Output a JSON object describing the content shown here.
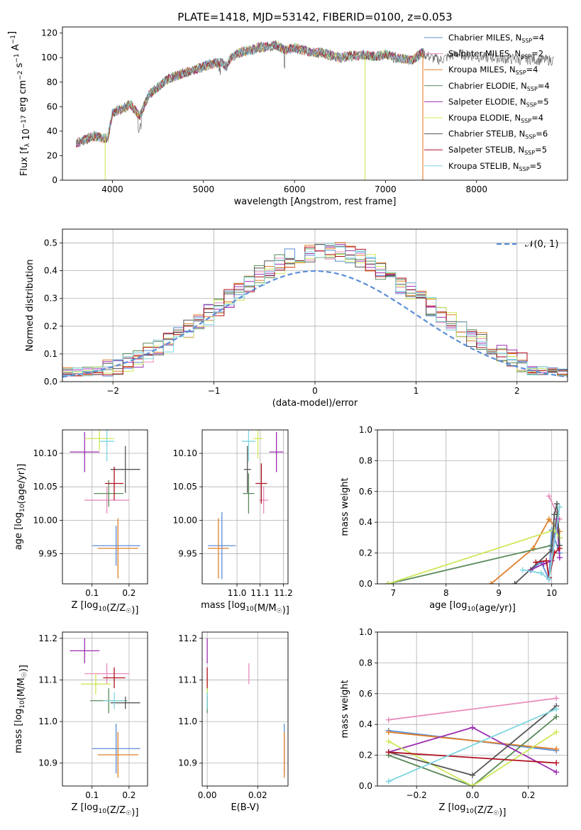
{
  "figure_title": "PLATE=1418, MJD=53142, FIBERID=0100, z=0.053",
  "colors": {
    "chabrier_miles": "#5b8ed6",
    "salpeter_miles": "#e98bbd",
    "kroupa_miles": "#e0802b",
    "chabrier_elodie": "#5a8a5a",
    "salpeter_elodie": "#9b2fb0",
    "kroupa_elodie": "#cde85a",
    "chabrier_stelib": "#555555",
    "salpeter_stelib": "#b01020",
    "kroupa_stelib": "#7fd6e0",
    "normal_curve": "#5b8ed6",
    "grid": "#b0b0b0"
  },
  "chart_data": [
    {
      "id": "spectrum",
      "type": "line",
      "title": "PLATE=1418, MJD=53142, FIBERID=0100, z=0.053",
      "xlabel": "wavelength [Angstrom, rest frame]",
      "ylabel": "Flux [f_λ 10^-17 erg cm^-2 s^-1 A^-1]",
      "xlim": [
        3450,
        9000
      ],
      "ylim": [
        0,
        125
      ],
      "xticks": [
        4000,
        5000,
        6000,
        7000,
        8000
      ],
      "yticks": [
        0,
        20,
        40,
        60,
        80,
        100,
        120
      ],
      "grid": false,
      "legend_position": "top-right",
      "legend": [
        {
          "label": "Chabrier MILES, N",
          "sub": "SSP",
          "suffix": "=4"
        },
        {
          "label": "Salpeter MILES, N",
          "sub": "SSP",
          "suffix": "=2"
        },
        {
          "label": "Kroupa MILES, N",
          "sub": "SSP",
          "suffix": "=4"
        },
        {
          "label": "Chabrier ELODIE, N",
          "sub": "SSP",
          "suffix": "=4"
        },
        {
          "label": "Salpeter ELODIE, N",
          "sub": "SSP",
          "suffix": "=5"
        },
        {
          "label": "Kroupa ELODIE, N",
          "sub": "SSP",
          "suffix": "=4"
        },
        {
          "label": "Chabrier STELIB, N",
          "sub": "SSP",
          "suffix": "=6"
        },
        {
          "label": "Salpeter STELIB, N",
          "sub": "SSP",
          "suffix": "=5"
        },
        {
          "label": "Kroupa STELIB, N",
          "sub": "SSP",
          "suffix": "=5"
        }
      ],
      "continuum": [
        [
          3600,
          30
        ],
        [
          3700,
          33
        ],
        [
          3800,
          36
        ],
        [
          3900,
          34
        ],
        [
          3950,
          35
        ],
        [
          4000,
          55
        ],
        [
          4100,
          58
        ],
        [
          4200,
          62
        ],
        [
          4300,
          52
        ],
        [
          4400,
          70
        ],
        [
          4500,
          76
        ],
        [
          4600,
          82
        ],
        [
          4700,
          85
        ],
        [
          4800,
          88
        ],
        [
          4900,
          90
        ],
        [
          5000,
          93
        ],
        [
          5100,
          95
        ],
        [
          5200,
          96
        ],
        [
          5250,
          92
        ],
        [
          5300,
          100
        ],
        [
          5400,
          104
        ],
        [
          5500,
          106
        ],
        [
          5600,
          108
        ],
        [
          5700,
          109
        ],
        [
          5800,
          110
        ],
        [
          5900,
          106
        ],
        [
          6000,
          108
        ],
        [
          6100,
          106
        ],
        [
          6200,
          104
        ],
        [
          6300,
          104
        ],
        [
          6400,
          102
        ],
        [
          6500,
          100
        ],
        [
          6600,
          101
        ],
        [
          6700,
          102
        ],
        [
          6800,
          102
        ],
        [
          6900,
          101
        ],
        [
          7000,
          103
        ],
        [
          7100,
          100
        ],
        [
          7200,
          99
        ],
        [
          7300,
          98
        ],
        [
          7400,
          104
        ],
        [
          7500,
          100
        ],
        [
          7600,
          98
        ],
        [
          7700,
          101
        ],
        [
          7800,
          103
        ],
        [
          7900,
          102
        ],
        [
          8000,
          101
        ],
        [
          8100,
          100
        ],
        [
          8200,
          100
        ],
        [
          8300,
          99
        ],
        [
          8400,
          99
        ],
        [
          8500,
          98
        ],
        [
          8600,
          99
        ],
        [
          8700,
          98
        ],
        [
          8800,
          98
        ],
        [
          8900,
          98
        ]
      ],
      "spectrum_end": [
        7400,
        8850
      ],
      "model_range": [
        3600,
        7420
      ],
      "drop_lines": [
        {
          "x": 3920,
          "model": "kroupa_elodie"
        },
        {
          "x": 6775,
          "model": "kroupa_elodie"
        },
        {
          "x": 7410,
          "model": "kroupa_miles"
        }
      ]
    },
    {
      "id": "residual_histogram",
      "type": "step",
      "xlabel": "(data-model)/error",
      "ylabel": "Normed distribution",
      "xlim": [
        -2.5,
        2.5
      ],
      "ylim": [
        0,
        0.55
      ],
      "xticks": [
        -2,
        -1,
        0,
        1,
        2
      ],
      "yticks": [
        0.0,
        0.1,
        0.2,
        0.3,
        0.4,
        0.5
      ],
      "grid": true,
      "legend_position": "top-right",
      "legend": [
        {
          "label": "𝒩(0, 1)"
        }
      ],
      "bin_width": 0.1,
      "normal_curve": {
        "mean": 0,
        "sigma": 1
      }
    },
    {
      "id": "age_vs_Z",
      "type": "errorbar",
      "xlabel": "Z [log10(Z/Z☉)]",
      "ylabel": "age [log10(age/yr)]",
      "xlim": [
        0.02,
        0.25
      ],
      "ylim": [
        9.905,
        10.135
      ],
      "xticks": [
        0.1,
        0.2
      ],
      "yticks": [
        9.95,
        10.0,
        10.05,
        10.1
      ],
      "grid": true,
      "points": [
        {
          "model": "chabrier_miles",
          "x": 0.165,
          "y": 9.962,
          "xerr": 0.065,
          "yerr": 0.03
        },
        {
          "model": "salpeter_miles",
          "x": 0.14,
          "y": 10.03,
          "xerr": 0.06,
          "yerr": 0.02
        },
        {
          "model": "kroupa_miles",
          "x": 0.17,
          "y": 9.958,
          "xerr": 0.055,
          "yerr": 0.045
        },
        {
          "model": "chabrier_elodie",
          "x": 0.145,
          "y": 10.04,
          "xerr": 0.04,
          "yerr": 0.02
        },
        {
          "model": "salpeter_elodie",
          "x": 0.08,
          "y": 10.102,
          "xerr": 0.04,
          "yerr": 0.03
        },
        {
          "model": "kroupa_elodie",
          "x": 0.12,
          "y": 10.122,
          "xerr": 0.04,
          "yerr": 0.018
        },
        {
          "model": "chabrier_stelib",
          "x": 0.19,
          "y": 10.076,
          "xerr": 0.04,
          "yerr": 0.035
        },
        {
          "model": "salpeter_stelib",
          "x": 0.16,
          "y": 10.055,
          "xerr": 0.025,
          "yerr": 0.025
        },
        {
          "model": "kroupa_stelib",
          "x": 0.14,
          "y": 10.118,
          "xerr": 0.02,
          "yerr": 0.03
        }
      ]
    },
    {
      "id": "age_vs_mass",
      "type": "errorbar",
      "xlabel": "mass [log10(M/M☉)]",
      "ylabel": "",
      "xlim": [
        10.85,
        11.22
      ],
      "ylim": [
        9.905,
        10.135
      ],
      "xticks": [
        11.0,
        11.1,
        11.2
      ],
      "yticks": [
        9.95,
        10.0,
        10.05,
        10.1
      ],
      "grid": true,
      "points": [
        {
          "model": "chabrier_miles",
          "x": 10.935,
          "y": 9.962,
          "xerr": 0.06,
          "yerr": 0.05
        },
        {
          "model": "salpeter_miles",
          "x": 11.115,
          "y": 10.03,
          "xerr": 0.02,
          "yerr": 0.02
        },
        {
          "model": "kroupa_miles",
          "x": 10.92,
          "y": 9.958,
          "xerr": 0.045,
          "yerr": 0.045
        },
        {
          "model": "chabrier_elodie",
          "x": 11.05,
          "y": 10.04,
          "xerr": 0.025,
          "yerr": 0.03
        },
        {
          "model": "salpeter_elodie",
          "x": 11.17,
          "y": 10.102,
          "xerr": 0.03,
          "yerr": 0.03
        },
        {
          "model": "kroupa_elodie",
          "x": 11.09,
          "y": 10.122,
          "xerr": 0.02,
          "yerr": 0.03
        },
        {
          "model": "chabrier_stelib",
          "x": 11.045,
          "y": 10.076,
          "xerr": 0.015,
          "yerr": 0.035
        },
        {
          "model": "salpeter_stelib",
          "x": 11.105,
          "y": 10.055,
          "xerr": 0.025,
          "yerr": 0.03
        },
        {
          "model": "kroupa_stelib",
          "x": 11.05,
          "y": 10.118,
          "xerr": 0.03,
          "yerr": 0.03
        }
      ]
    },
    {
      "id": "mass_weight_vs_age",
      "type": "line",
      "xlabel": "age [log10(age/yr)]",
      "ylabel": "mass weight",
      "xlim": [
        6.7,
        10.3
      ],
      "ylim": [
        0,
        1.0
      ],
      "xticks": [
        7,
        8,
        9,
        10
      ],
      "yticks": [
        0.0,
        0.2,
        0.4,
        0.6,
        0.8,
        1.0
      ],
      "grid": true,
      "series": [
        {
          "model": "chabrier_miles",
          "points": [
            [
              9.6,
              0.09
            ],
            [
              9.8,
              0.14
            ],
            [
              9.95,
              0.03
            ],
            [
              10.0,
              0.35
            ],
            [
              10.15,
              0.2
            ]
          ]
        },
        {
          "model": "salpeter_miles",
          "points": [
            [
              9.95,
              0.57
            ],
            [
              10.15,
              0.42
            ]
          ]
        },
        {
          "model": "kroupa_miles",
          "points": [
            [
              8.85,
              0.0
            ],
            [
              9.65,
              0.23
            ],
            [
              9.95,
              0.42
            ],
            [
              10.15,
              0.34
            ]
          ]
        },
        {
          "model": "chabrier_elodie",
          "points": [
            [
              6.9,
              0.0
            ],
            [
              10.0,
              0.25
            ],
            [
              10.1,
              0.45
            ],
            [
              10.15,
              0.3
            ]
          ]
        },
        {
          "model": "salpeter_elodie",
          "points": [
            [
              9.6,
              0.09
            ],
            [
              9.85,
              0.13
            ],
            [
              10.0,
              0.15
            ],
            [
              10.1,
              0.42
            ],
            [
              10.15,
              0.17
            ]
          ]
        },
        {
          "model": "kroupa_elodie",
          "points": [
            [
              6.9,
              0.0
            ],
            [
              10.05,
              0.35
            ],
            [
              10.15,
              0.3
            ]
          ]
        },
        {
          "model": "chabrier_stelib",
          "points": [
            [
              9.3,
              0.0
            ],
            [
              10.0,
              0.22
            ],
            [
              10.05,
              0.45
            ],
            [
              10.1,
              0.52
            ],
            [
              10.15,
              0.25
            ]
          ]
        },
        {
          "model": "salpeter_stelib",
          "points": [
            [
              9.7,
              0.14
            ],
            [
              9.9,
              0.15
            ],
            [
              9.95,
              0.04
            ],
            [
              10.05,
              0.2
            ],
            [
              10.15,
              0.23
            ]
          ]
        },
        {
          "model": "kroupa_stelib",
          "points": [
            [
              9.45,
              0.09
            ],
            [
              9.8,
              0.07
            ],
            [
              9.95,
              0.03
            ],
            [
              10.15,
              0.5
            ]
          ]
        }
      ]
    },
    {
      "id": "mass_vs_Z",
      "type": "errorbar",
      "xlabel": "Z [log10(Z/Z☉)]",
      "ylabel": "mass [log10(M/M☉)]",
      "xlim": [
        0.02,
        0.25
      ],
      "ylim": [
        10.845,
        11.215
      ],
      "xticks": [
        0.1,
        0.2
      ],
      "yticks": [
        10.9,
        11.0,
        11.1,
        11.2
      ],
      "grid": true,
      "points": [
        {
          "model": "chabrier_miles",
          "x": 0.165,
          "y": 10.935,
          "xerr": 0.065,
          "yerr": 0.06
        },
        {
          "model": "salpeter_miles",
          "x": 0.14,
          "y": 11.115,
          "xerr": 0.06,
          "yerr": 0.025
        },
        {
          "model": "kroupa_miles",
          "x": 0.17,
          "y": 10.92,
          "xerr": 0.055,
          "yerr": 0.055
        },
        {
          "model": "chabrier_elodie",
          "x": 0.145,
          "y": 11.05,
          "xerr": 0.05,
          "yerr": 0.03
        },
        {
          "model": "salpeter_elodie",
          "x": 0.08,
          "y": 11.17,
          "xerr": 0.04,
          "yerr": 0.03
        },
        {
          "model": "kroupa_elodie",
          "x": 0.11,
          "y": 11.09,
          "xerr": 0.04,
          "yerr": 0.025
        },
        {
          "model": "chabrier_stelib",
          "x": 0.19,
          "y": 11.045,
          "xerr": 0.04,
          "yerr": 0.015
        },
        {
          "model": "salpeter_stelib",
          "x": 0.16,
          "y": 11.105,
          "xerr": 0.03,
          "yerr": 0.025
        },
        {
          "model": "kroupa_stelib",
          "x": 0.16,
          "y": 11.05,
          "xerr": 0.03,
          "yerr": 0.02
        }
      ]
    },
    {
      "id": "mass_vs_ebv",
      "type": "errorbar",
      "xlabel": "E(B-V)",
      "ylabel": "",
      "xlim": [
        -0.002,
        0.032
      ],
      "ylim": [
        10.845,
        11.215
      ],
      "xticks": [
        0.0,
        0.02
      ],
      "yticks": [
        10.9,
        11.0,
        11.1,
        11.2
      ],
      "grid": true,
      "points": [
        {
          "model": "chabrier_miles",
          "x": 0.0305,
          "y": 10.935,
          "xerr": 0,
          "yerr": 0.06
        },
        {
          "model": "salpeter_miles",
          "x": 0.0165,
          "y": 11.115,
          "xerr": 0,
          "yerr": 0.025
        },
        {
          "model": "kroupa_miles",
          "x": 0.0305,
          "y": 10.92,
          "xerr": 0,
          "yerr": 0.055
        },
        {
          "model": "chabrier_elodie",
          "x": 0.0,
          "y": 11.05,
          "xerr": 0,
          "yerr": 0.03
        },
        {
          "model": "salpeter_elodie",
          "x": 0.0,
          "y": 11.17,
          "xerr": 0,
          "yerr": 0.03
        },
        {
          "model": "kroupa_elodie",
          "x": 0.0,
          "y": 11.09,
          "xerr": 0,
          "yerr": 0.025
        },
        {
          "model": "chabrier_stelib",
          "x": 0.0,
          "y": 11.045,
          "xerr": 0,
          "yerr": 0.015
        },
        {
          "model": "salpeter_stelib",
          "x": 0.0,
          "y": 11.105,
          "xerr": 0,
          "yerr": 0.025
        },
        {
          "model": "kroupa_stelib",
          "x": 0.0,
          "y": 11.05,
          "xerr": 0,
          "yerr": 0.02
        }
      ]
    },
    {
      "id": "mass_weight_vs_Z",
      "type": "line",
      "xlabel": "Z [log10(Z/Z☉)]",
      "ylabel": "mass weight",
      "xlim": [
        -0.34,
        0.34
      ],
      "ylim": [
        0,
        1.0
      ],
      "xticks": [
        -0.2,
        0.0,
        0.2
      ],
      "yticks": [
        0.0,
        0.2,
        0.4,
        0.6,
        0.8,
        1.0
      ],
      "grid": true,
      "series": [
        {
          "model": "chabrier_miles",
          "points": [
            [
              -0.3,
              0.36
            ],
            [
              0.3,
              0.23
            ]
          ]
        },
        {
          "model": "salpeter_miles",
          "points": [
            [
              -0.3,
              0.43
            ],
            [
              0.3,
              0.57
            ]
          ]
        },
        {
          "model": "kroupa_miles",
          "points": [
            [
              -0.3,
              0.35
            ],
            [
              0.3,
              0.24
            ]
          ]
        },
        {
          "model": "chabrier_elodie",
          "points": [
            [
              -0.3,
              0.2
            ],
            [
              0.0,
              0.0
            ],
            [
              0.3,
              0.45
            ]
          ]
        },
        {
          "model": "salpeter_elodie",
          "points": [
            [
              -0.3,
              0.22
            ],
            [
              0.0,
              0.38
            ],
            [
              0.3,
              0.09
            ]
          ]
        },
        {
          "model": "kroupa_elodie",
          "points": [
            [
              -0.3,
              0.29
            ],
            [
              0.0,
              0.0
            ],
            [
              0.3,
              0.35
            ]
          ]
        },
        {
          "model": "chabrier_stelib",
          "points": [
            [
              -0.3,
              0.22
            ],
            [
              0.0,
              0.07
            ],
            [
              0.3,
              0.52
            ]
          ]
        },
        {
          "model": "salpeter_stelib",
          "points": [
            [
              -0.3,
              0.22
            ],
            [
              0.3,
              0.15
            ]
          ]
        },
        {
          "model": "kroupa_stelib",
          "points": [
            [
              -0.3,
              0.03
            ],
            [
              0.3,
              0.5
            ]
          ]
        }
      ]
    }
  ]
}
